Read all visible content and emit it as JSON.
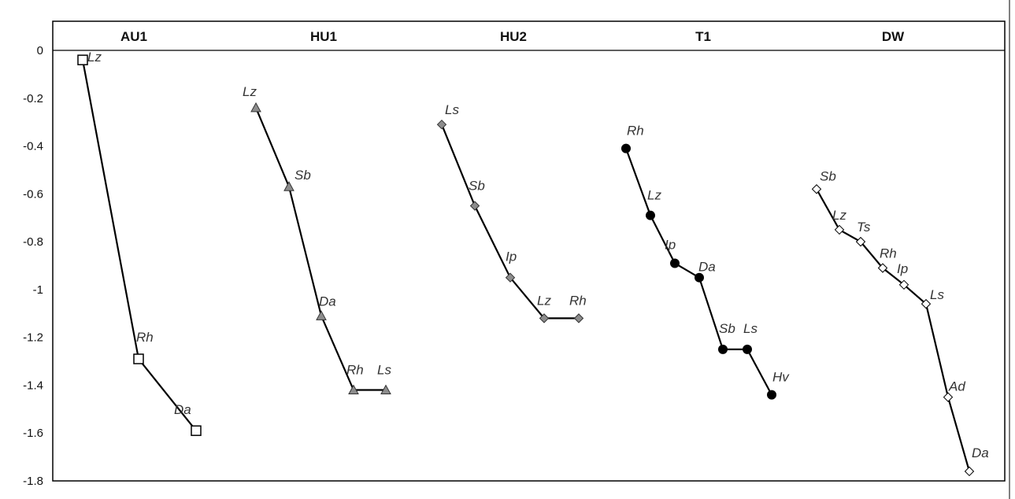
{
  "chart_data": {
    "type": "line",
    "ylim": [
      -1.8,
      0
    ],
    "yticks": [
      "0",
      "-0.2",
      "-0.4",
      "-0.6",
      "-0.8",
      "-1",
      "-1.2",
      "-1.4",
      "-1.6",
      "-1.8"
    ],
    "grid": false,
    "legend": "none",
    "panels": [
      {
        "title": "AU1",
        "marker": "square-open",
        "points": [
          {
            "label": "Lz",
            "y": -0.04
          },
          {
            "label": "Rh",
            "y": -1.29
          },
          {
            "label": "Da",
            "y": -1.59
          }
        ]
      },
      {
        "title": "HU1",
        "marker": "triangle-gray",
        "points": [
          {
            "label": "Lz",
            "y": -0.24
          },
          {
            "label": "Sb",
            "y": -0.57
          },
          {
            "label": "Da",
            "y": -1.11
          },
          {
            "label": "Rh",
            "y": -1.42
          },
          {
            "label": "Ls",
            "y": -1.42
          }
        ]
      },
      {
        "title": "HU2",
        "marker": "diamond-gray",
        "points": [
          {
            "label": "Ls",
            "y": -0.31
          },
          {
            "label": "Sb",
            "y": -0.65
          },
          {
            "label": "Ip",
            "y": -0.95
          },
          {
            "label": "Lz",
            "y": -1.12
          },
          {
            "label": "Rh",
            "y": -1.12
          }
        ]
      },
      {
        "title": "T1",
        "marker": "circle-black",
        "points": [
          {
            "label": "Rh",
            "y": -0.41
          },
          {
            "label": "Lz",
            "y": -0.69
          },
          {
            "label": "Ip",
            "y": -0.89
          },
          {
            "label": "Da",
            "y": -0.95
          },
          {
            "label": "Sb",
            "y": -1.25
          },
          {
            "label": "Ls",
            "y": -1.25
          },
          {
            "label": "Hv",
            "y": -1.44
          }
        ]
      },
      {
        "title": "DW",
        "marker": "diamond-open",
        "points": [
          {
            "label": "Sb",
            "y": -0.58
          },
          {
            "label": "Lz",
            "y": -0.75
          },
          {
            "label": "Ts",
            "y": -0.8
          },
          {
            "label": "Rh",
            "y": -0.91
          },
          {
            "label": "Ip",
            "y": -0.98
          },
          {
            "label": "Ls",
            "y": -1.06
          },
          {
            "label": "Ad",
            "y": -1.45
          },
          {
            "label": "Da",
            "y": -1.76
          }
        ]
      }
    ]
  }
}
